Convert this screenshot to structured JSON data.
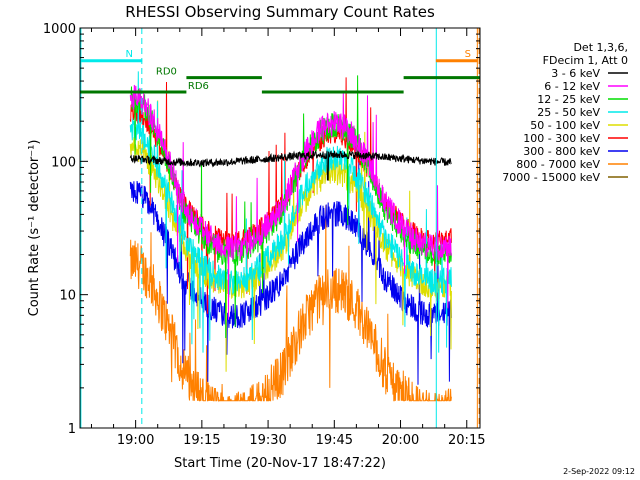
{
  "chart_data": {
    "type": "line",
    "title": "RHESSI Observing Summary Count Rates",
    "xlabel": "Start Time (20-Nov-17 18:47:22)",
    "ylabel": "Count Rate (s⁻¹ detector⁻¹)",
    "yscale": "log",
    "ylim": [
      1,
      1000
    ],
    "xlim_min_since_18_00": [
      47.4,
      138.0
    ],
    "x_ticks": [
      {
        "at": 60,
        "label": "19:00"
      },
      {
        "at": 75,
        "label": "19:15"
      },
      {
        "at": 90,
        "label": "19:30"
      },
      {
        "at": 105,
        "label": "19:45"
      },
      {
        "at": 120,
        "label": "20:00"
      },
      {
        "at": 135,
        "label": "20:15"
      }
    ],
    "y_ticks": [
      {
        "at": 1,
        "label": "1"
      },
      {
        "at": 10,
        "label": "10"
      },
      {
        "at": 100,
        "label": "100"
      },
      {
        "at": 1000,
        "label": "1000"
      }
    ],
    "legend_header": [
      "Det 1,3,6,",
      "FDecim 1, Att 0"
    ],
    "series": [
      {
        "name": "3 - 6 keV",
        "color": "#000000",
        "offset": 4.1,
        "amp": 0.0,
        "noise": 0.03,
        "profile": "black"
      },
      {
        "name": "6 - 12 keV",
        "color": "#ff00ff",
        "offset": 2.62,
        "amp": 1.34,
        "noise": 0.1,
        "profile": "smooth"
      },
      {
        "name": "12 - 25 keV",
        "color": "#00dd00",
        "offset": 2.58,
        "amp": 1.38,
        "noise": 0.1,
        "profile": "smooth"
      },
      {
        "name": "25 - 50 keV",
        "color": "#00eaea",
        "offset": 2.35,
        "amp": 1.34,
        "noise": 0.1,
        "profile": "smooth"
      },
      {
        "name": "50 - 100 keV",
        "color": "#dddd00",
        "offset": 2.28,
        "amp": 1.24,
        "noise": 0.1,
        "profile": "smooth"
      },
      {
        "name": "100 - 300 keV",
        "color": "#ff0000",
        "offset": 2.62,
        "amp": 1.15,
        "noise": 0.08,
        "profile": "smooth"
      },
      {
        "name": "300 - 800 keV",
        "color": "#0000ee",
        "offset": 2.02,
        "amp": 1.1,
        "noise": 0.1,
        "profile": "smooth"
      },
      {
        "name": "800 - 7000 keV",
        "color": "#ff8000",
        "offset": 1.3,
        "amp": 1.35,
        "noise": 0.18,
        "profile": "smooth"
      },
      {
        "name": "7000 - 15000 keV",
        "color": "#806000",
        "offset": 0,
        "amp": 0,
        "noise": 0,
        "profile": "none"
      }
    ],
    "data_interval_min": [
      58.8,
      131.6
    ],
    "gap_min": [
      58.6,
      131.8
    ],
    "flags": [
      {
        "label": "N",
        "color": "#00eaea",
        "x_min": [
          47.4,
          61.5
        ],
        "y_frac": 0.082
      },
      {
        "label": "S",
        "color": "#ff8000",
        "x_min": [
          128.0,
          137.5
        ],
        "y_frac": 0.082
      }
    ],
    "rd_bars": [
      {
        "label": "RD0",
        "color": "#007700",
        "segments": [
          [
            71.5,
            88.6
          ],
          [
            120.7,
            138.0
          ]
        ],
        "y_frac": 0.124
      },
      {
        "label": "RD6",
        "color": "#007700",
        "segments": [
          [
            47.4,
            71.5
          ],
          [
            88.6,
            120.7
          ]
        ],
        "y_frac": 0.16
      }
    ],
    "vlines": [
      {
        "x_min": 47.6,
        "color": "#00eaea",
        "style": "solid"
      },
      {
        "x_min": 61.4,
        "color": "#00eaea",
        "style": "dashed"
      },
      {
        "x_min": 128.1,
        "color": "#00eaea",
        "style": "solid"
      },
      {
        "x_min": 137.4,
        "color": "#ff8000",
        "style": "solid"
      },
      {
        "x_min": 137.8,
        "color": "#ff8000",
        "style": "dashed"
      }
    ]
  },
  "footer": {
    "date": "2-Sep-2022 09:12"
  }
}
